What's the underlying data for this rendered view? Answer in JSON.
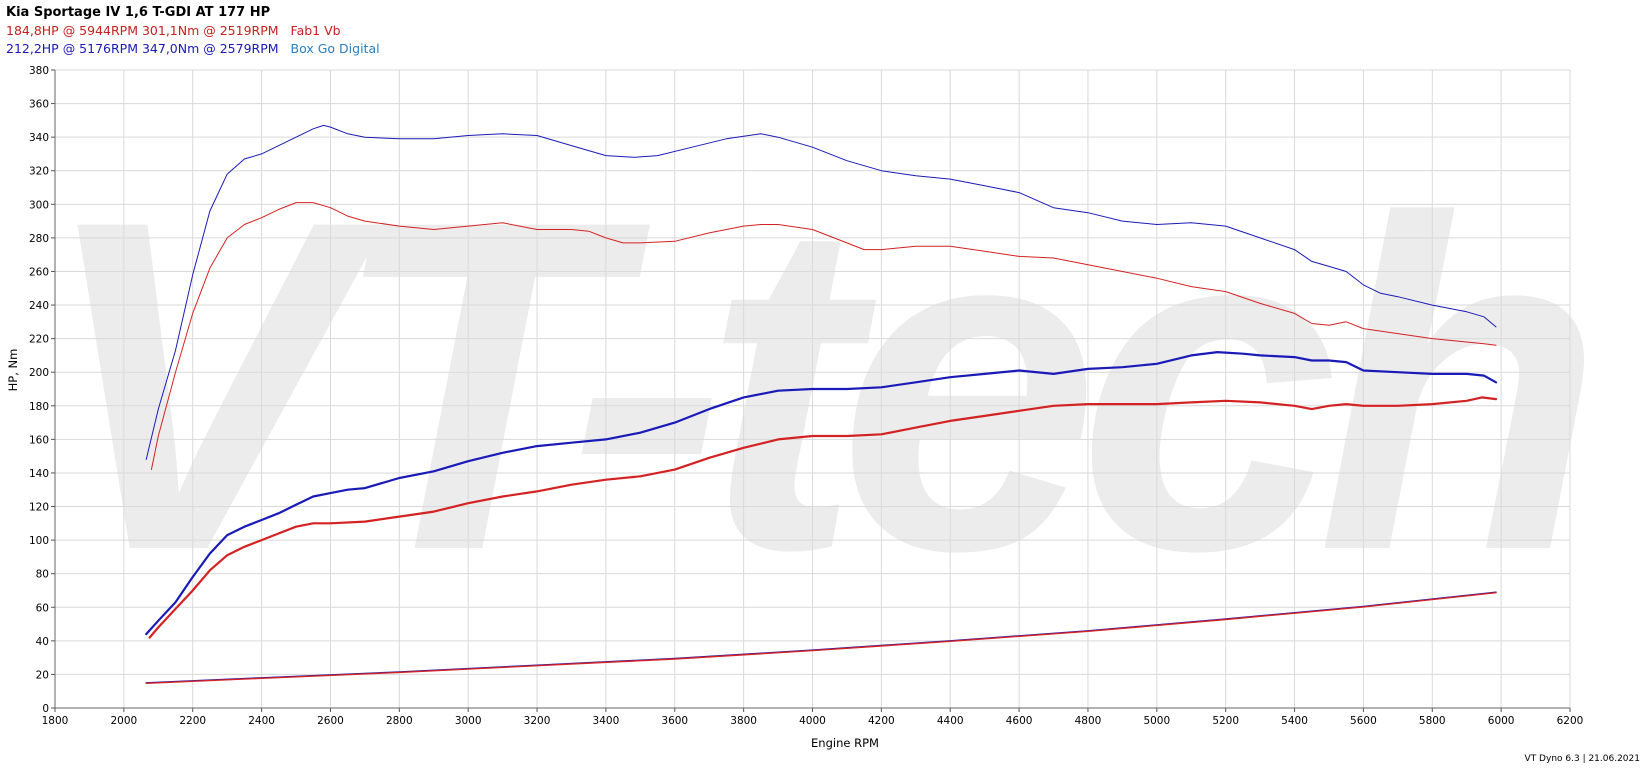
{
  "header": {
    "title": "Kia Sportage IV 1,6 T-GDI AT 177 HP",
    "stock_summary": "184,8HP @ 5944RPM 301,1Nm @ 2519RPM",
    "stock_name": "Fab1 Vb",
    "tuned_summary": "212,2HP @ 5176RPM 347,0Nm @ 2579RPM",
    "tuned_name": "Box Go Digital"
  },
  "footer": {
    "text": "VT Dyno 6.3 | 21.06.2021"
  },
  "watermark": {
    "text": "VT-tech"
  },
  "colors": {
    "stock": "#d42222",
    "tuned": "#1a1ab8",
    "grid": "#d9d9d9",
    "watermark": "#ececec"
  },
  "chart_data": {
    "type": "line",
    "xlabel": "Engine RPM",
    "ylabel": "HP, Nm",
    "xlim": [
      1800,
      6200
    ],
    "ylim": [
      0,
      380
    ],
    "x_ticks": [
      1800,
      2000,
      2200,
      2400,
      2600,
      2800,
      3000,
      3200,
      3400,
      3600,
      3800,
      4000,
      4200,
      4400,
      4600,
      4800,
      5000,
      5200,
      5400,
      5600,
      5800,
      6000,
      6200
    ],
    "y_ticks": [
      0,
      20,
      40,
      60,
      80,
      100,
      120,
      140,
      160,
      180,
      200,
      220,
      240,
      260,
      280,
      300,
      320,
      340,
      360,
      380
    ],
    "grid": true,
    "series": [
      {
        "name": "Box Go Digital",
        "quantity": "torque",
        "color": "#1a1ab8",
        "width": 1,
        "points": [
          [
            2065,
            148
          ],
          [
            2100,
            178
          ],
          [
            2150,
            213
          ],
          [
            2200,
            258
          ],
          [
            2250,
            296
          ],
          [
            2300,
            318
          ],
          [
            2350,
            327
          ],
          [
            2400,
            330
          ],
          [
            2450,
            335
          ],
          [
            2500,
            340
          ],
          [
            2550,
            345
          ],
          [
            2580,
            347
          ],
          [
            2600,
            346
          ],
          [
            2650,
            342
          ],
          [
            2700,
            340
          ],
          [
            2800,
            339
          ],
          [
            2900,
            339
          ],
          [
            3000,
            341
          ],
          [
            3100,
            342
          ],
          [
            3200,
            341
          ],
          [
            3300,
            335
          ],
          [
            3400,
            329
          ],
          [
            3480,
            328
          ],
          [
            3550,
            329
          ],
          [
            3650,
            334
          ],
          [
            3750,
            339
          ],
          [
            3850,
            342
          ],
          [
            3900,
            340
          ],
          [
            4000,
            334
          ],
          [
            4100,
            326
          ],
          [
            4200,
            320
          ],
          [
            4300,
            317
          ],
          [
            4400,
            315
          ],
          [
            4500,
            311
          ],
          [
            4600,
            307
          ],
          [
            4700,
            298
          ],
          [
            4800,
            295
          ],
          [
            4900,
            290
          ],
          [
            5000,
            288
          ],
          [
            5100,
            289
          ],
          [
            5200,
            287
          ],
          [
            5300,
            280
          ],
          [
            5400,
            273
          ],
          [
            5450,
            266
          ],
          [
            5500,
            263
          ],
          [
            5550,
            260
          ],
          [
            5600,
            252
          ],
          [
            5650,
            247
          ],
          [
            5700,
            245
          ],
          [
            5800,
            240
          ],
          [
            5900,
            236
          ],
          [
            5950,
            233
          ],
          [
            5985,
            227
          ]
        ]
      },
      {
        "name": "Fab1 Vb",
        "quantity": "torque",
        "color": "#d42222",
        "width": 1,
        "points": [
          [
            2080,
            142
          ],
          [
            2100,
            162
          ],
          [
            2150,
            200
          ],
          [
            2200,
            235
          ],
          [
            2250,
            262
          ],
          [
            2300,
            280
          ],
          [
            2350,
            288
          ],
          [
            2400,
            292
          ],
          [
            2450,
            297
          ],
          [
            2500,
            301
          ],
          [
            2550,
            301
          ],
          [
            2600,
            298
          ],
          [
            2650,
            293
          ],
          [
            2700,
            290
          ],
          [
            2800,
            287
          ],
          [
            2900,
            285
          ],
          [
            3000,
            287
          ],
          [
            3100,
            289
          ],
          [
            3200,
            285
          ],
          [
            3300,
            285
          ],
          [
            3350,
            284
          ],
          [
            3400,
            280
          ],
          [
            3450,
            277
          ],
          [
            3500,
            277
          ],
          [
            3600,
            278
          ],
          [
            3700,
            283
          ],
          [
            3800,
            287
          ],
          [
            3850,
            288
          ],
          [
            3900,
            288
          ],
          [
            4000,
            285
          ],
          [
            4100,
            277
          ],
          [
            4150,
            273
          ],
          [
            4200,
            273
          ],
          [
            4300,
            275
          ],
          [
            4400,
            275
          ],
          [
            4500,
            272
          ],
          [
            4600,
            269
          ],
          [
            4700,
            268
          ],
          [
            4800,
            264
          ],
          [
            4900,
            260
          ],
          [
            5000,
            256
          ],
          [
            5100,
            251
          ],
          [
            5200,
            248
          ],
          [
            5300,
            241
          ],
          [
            5400,
            235
          ],
          [
            5450,
            229
          ],
          [
            5500,
            228
          ],
          [
            5550,
            230
          ],
          [
            5600,
            226
          ],
          [
            5700,
            223
          ],
          [
            5800,
            220
          ],
          [
            5900,
            218
          ],
          [
            5950,
            217
          ],
          [
            5985,
            216
          ]
        ]
      },
      {
        "name": "Box Go Digital",
        "quantity": "power",
        "color": "#1a1ab8",
        "width": 2.2,
        "points": [
          [
            2065,
            44
          ],
          [
            2100,
            52
          ],
          [
            2150,
            63
          ],
          [
            2200,
            78
          ],
          [
            2250,
            92
          ],
          [
            2300,
            103
          ],
          [
            2350,
            108
          ],
          [
            2400,
            112
          ],
          [
            2450,
            116
          ],
          [
            2500,
            121
          ],
          [
            2550,
            126
          ],
          [
            2600,
            128
          ],
          [
            2650,
            130
          ],
          [
            2700,
            131
          ],
          [
            2800,
            137
          ],
          [
            2900,
            141
          ],
          [
            3000,
            147
          ],
          [
            3100,
            152
          ],
          [
            3200,
            156
          ],
          [
            3300,
            158
          ],
          [
            3400,
            160
          ],
          [
            3500,
            164
          ],
          [
            3600,
            170
          ],
          [
            3700,
            178
          ],
          [
            3800,
            185
          ],
          [
            3900,
            189
          ],
          [
            4000,
            190
          ],
          [
            4100,
            190
          ],
          [
            4200,
            191
          ],
          [
            4300,
            194
          ],
          [
            4400,
            197
          ],
          [
            4500,
            199
          ],
          [
            4600,
            201
          ],
          [
            4700,
            199
          ],
          [
            4800,
            202
          ],
          [
            4900,
            203
          ],
          [
            5000,
            205
          ],
          [
            5100,
            210
          ],
          [
            5176,
            212
          ],
          [
            5250,
            211
          ],
          [
            5300,
            210
          ],
          [
            5400,
            209
          ],
          [
            5450,
            207
          ],
          [
            5500,
            207
          ],
          [
            5550,
            206
          ],
          [
            5600,
            201
          ],
          [
            5700,
            200
          ],
          [
            5800,
            199
          ],
          [
            5900,
            199
          ],
          [
            5950,
            198
          ],
          [
            5985,
            194
          ]
        ]
      },
      {
        "name": "Fab1 Vb",
        "quantity": "power",
        "color": "#d42222",
        "width": 2.2,
        "points": [
          [
            2075,
            42
          ],
          [
            2100,
            48
          ],
          [
            2150,
            59
          ],
          [
            2200,
            70
          ],
          [
            2250,
            82
          ],
          [
            2300,
            91
          ],
          [
            2350,
            96
          ],
          [
            2400,
            100
          ],
          [
            2450,
            104
          ],
          [
            2500,
            108
          ],
          [
            2550,
            110
          ],
          [
            2600,
            110
          ],
          [
            2700,
            111
          ],
          [
            2800,
            114
          ],
          [
            2900,
            117
          ],
          [
            3000,
            122
          ],
          [
            3100,
            126
          ],
          [
            3200,
            129
          ],
          [
            3300,
            133
          ],
          [
            3400,
            136
          ],
          [
            3500,
            138
          ],
          [
            3600,
            142
          ],
          [
            3700,
            149
          ],
          [
            3800,
            155
          ],
          [
            3900,
            160
          ],
          [
            4000,
            162
          ],
          [
            4100,
            162
          ],
          [
            4200,
            163
          ],
          [
            4300,
            167
          ],
          [
            4400,
            171
          ],
          [
            4500,
            174
          ],
          [
            4600,
            177
          ],
          [
            4700,
            180
          ],
          [
            4800,
            181
          ],
          [
            4900,
            181
          ],
          [
            5000,
            181
          ],
          [
            5100,
            182
          ],
          [
            5200,
            183
          ],
          [
            5300,
            182
          ],
          [
            5400,
            180
          ],
          [
            5450,
            178
          ],
          [
            5500,
            180
          ],
          [
            5550,
            181
          ],
          [
            5600,
            180
          ],
          [
            5700,
            180
          ],
          [
            5800,
            181
          ],
          [
            5900,
            183
          ],
          [
            5944,
            185
          ],
          [
            5985,
            184
          ]
        ]
      },
      {
        "name": "Box Go Digital",
        "quantity": "loss",
        "color": "#1a1ab8",
        "width": 1.4,
        "points": [
          [
            2065,
            15
          ],
          [
            2400,
            18
          ],
          [
            2800,
            21.5
          ],
          [
            3200,
            25.5
          ],
          [
            3600,
            29.5
          ],
          [
            4000,
            34.5
          ],
          [
            4400,
            40
          ],
          [
            4800,
            46
          ],
          [
            5200,
            53
          ],
          [
            5600,
            60.5
          ],
          [
            5985,
            69
          ]
        ]
      },
      {
        "name": "Fab1 Vb",
        "quantity": "loss",
        "color": "#d42222",
        "width": 1.4,
        "points": [
          [
            2065,
            14.7
          ],
          [
            2400,
            17.7
          ],
          [
            2800,
            21.2
          ],
          [
            3200,
            25.2
          ],
          [
            3600,
            29.2
          ],
          [
            4000,
            34.2
          ],
          [
            4400,
            39.7
          ],
          [
            4800,
            45.7
          ],
          [
            5200,
            52.7
          ],
          [
            5600,
            60.2
          ],
          [
            5985,
            68.7
          ]
        ]
      }
    ]
  }
}
